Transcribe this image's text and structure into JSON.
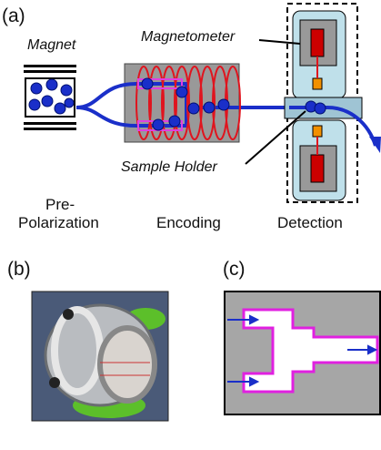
{
  "panel_a": {
    "label": "(a)",
    "magnet": "Magnet",
    "magnetometer": "Magnetometer",
    "sample_holder": "Sample Holder",
    "stages": {
      "pre_polarization": [
        "Pre-",
        "Polarization"
      ],
      "encoding": "Encoding",
      "detection": "Detection"
    }
  },
  "panel_b": {
    "label": "(b)"
  },
  "panel_c": {
    "label": "(c)"
  }
}
